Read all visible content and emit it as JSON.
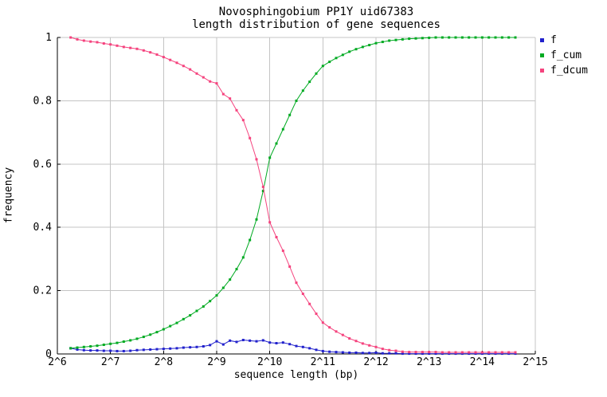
{
  "chart_data": {
    "type": "line",
    "title": "Novosphingobium PP1Y uid67383",
    "subtitle": "length distribution of gene sequences",
    "xlabel": "sequence length (bp)",
    "ylabel": "frequency",
    "xlim": [
      6,
      15
    ],
    "ylim": [
      0,
      1
    ],
    "grid": true,
    "legend_position": "outside-top-right",
    "x_scale": "log2",
    "x_ticks": {
      "values": [
        6,
        7,
        8,
        9,
        10,
        11,
        12,
        13,
        14,
        15
      ],
      "labels": [
        "2^6",
        "2^7",
        "2^8",
        "2^9",
        "2^10",
        "2^11",
        "2^12",
        "2^13",
        "2^14",
        "2^15"
      ]
    },
    "y_ticks": {
      "values": [
        0,
        0.2,
        0.4,
        0.6,
        0.8,
        1
      ],
      "labels": [
        "0",
        "0.2",
        "0.4",
        "0.6",
        "0.8",
        "1"
      ]
    },
    "x_log2": [
      6.25,
      6.375,
      6.5,
      6.625,
      6.75,
      6.875,
      7,
      7.125,
      7.25,
      7.375,
      7.5,
      7.625,
      7.75,
      7.875,
      8,
      8.125,
      8.25,
      8.375,
      8.5,
      8.625,
      8.75,
      8.875,
      9,
      9.125,
      9.25,
      9.375,
      9.5,
      9.625,
      9.75,
      9.875,
      10,
      10.125,
      10.25,
      10.375,
      10.5,
      10.625,
      10.75,
      10.875,
      11,
      11.125,
      11.25,
      11.375,
      11.5,
      11.625,
      11.75,
      11.875,
      12,
      12.125,
      12.25,
      12.375,
      12.5,
      12.625,
      12.75,
      12.875,
      13,
      13.125,
      13.25,
      13.375,
      13.5,
      13.625,
      13.75,
      13.875,
      14,
      14.125,
      14.25,
      14.375,
      14.5,
      14.625
    ],
    "series": [
      {
        "name": "f",
        "color": "#2121cc",
        "marker": "square",
        "values": [
          0.018,
          0.014,
          0.012,
          0.011,
          0.011,
          0.01,
          0.01,
          0.009,
          0.009,
          0.01,
          0.012,
          0.013,
          0.014,
          0.015,
          0.016,
          0.017,
          0.018,
          0.02,
          0.021,
          0.022,
          0.024,
          0.028,
          0.04,
          0.03,
          0.042,
          0.038,
          0.044,
          0.042,
          0.04,
          0.043,
          0.036,
          0.034,
          0.036,
          0.031,
          0.025,
          0.022,
          0.018,
          0.013,
          0.009,
          0.007,
          0.006,
          0.005,
          0.004,
          0.004,
          0.003,
          0.003,
          0.004,
          0.002,
          0.002,
          0.002,
          0.001,
          0.001,
          0.001,
          0.001,
          0.001,
          0.001,
          0.001,
          0.001,
          0.001,
          0.001,
          0.001,
          0.001,
          0.001,
          0.001,
          0.001,
          0.001,
          0.001,
          0.001
        ]
      },
      {
        "name": "f_cum",
        "color": "#00aa22",
        "marker": "square",
        "values": [
          0.018,
          0.02,
          0.022,
          0.024,
          0.026,
          0.029,
          0.032,
          0.035,
          0.039,
          0.043,
          0.048,
          0.054,
          0.061,
          0.069,
          0.078,
          0.088,
          0.098,
          0.11,
          0.122,
          0.136,
          0.15,
          0.167,
          0.185,
          0.209,
          0.235,
          0.268,
          0.305,
          0.36,
          0.425,
          0.515,
          0.62,
          0.665,
          0.71,
          0.755,
          0.8,
          0.832,
          0.86,
          0.886,
          0.91,
          0.923,
          0.935,
          0.945,
          0.955,
          0.963,
          0.97,
          0.976,
          0.982,
          0.986,
          0.99,
          0.992,
          0.994,
          0.996,
          0.997,
          0.998,
          0.999,
          1.0,
          1.0,
          1.0,
          1.0,
          1.0,
          1.0,
          1.0,
          1.0,
          1.0,
          1.0,
          1.0,
          1.0,
          1.0
        ]
      },
      {
        "name": "f_dcum",
        "color": "#f5437e",
        "marker": "square",
        "values": [
          1.0,
          0.994,
          0.99,
          0.987,
          0.985,
          0.981,
          0.978,
          0.974,
          0.97,
          0.967,
          0.964,
          0.959,
          0.953,
          0.946,
          0.938,
          0.929,
          0.92,
          0.91,
          0.899,
          0.886,
          0.874,
          0.861,
          0.855,
          0.821,
          0.807,
          0.77,
          0.739,
          0.682,
          0.615,
          0.528,
          0.416,
          0.369,
          0.326,
          0.276,
          0.225,
          0.19,
          0.158,
          0.127,
          0.099,
          0.084,
          0.071,
          0.06,
          0.049,
          0.041,
          0.033,
          0.027,
          0.022,
          0.016,
          0.012,
          0.01,
          0.007,
          0.006,
          0.006,
          0.006,
          0.006,
          0.006,
          0.005,
          0.005,
          0.005,
          0.005,
          0.005,
          0.005,
          0.005,
          0.005,
          0.005,
          0.005,
          0.005,
          0.005
        ]
      }
    ]
  }
}
